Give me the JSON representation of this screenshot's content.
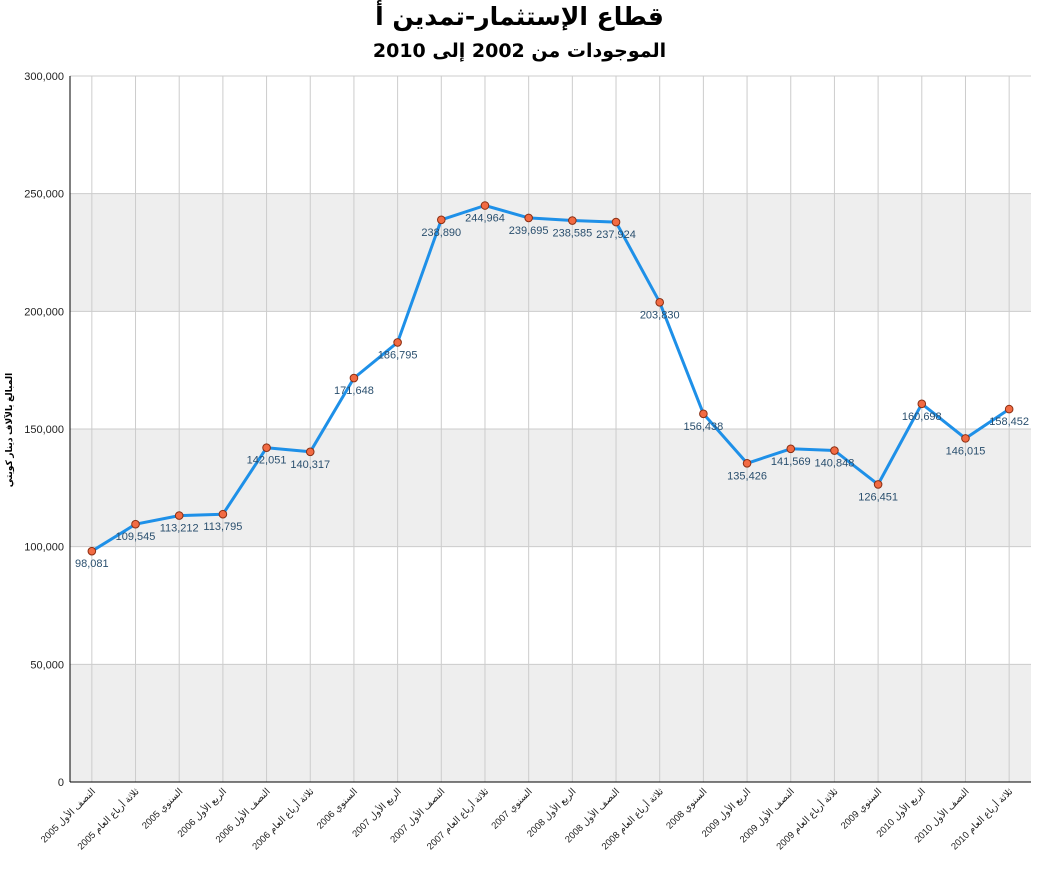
{
  "chart_data": {
    "type": "line",
    "title": "قطاع الإستثمار-تمدين أ",
    "subtitle": "الموجودات من 2002 إلى 2010",
    "ylabel": "المبالغ بالآلاف دينار كويتي",
    "xlabel": "",
    "ylim": [
      0,
      300000
    ],
    "yticks": [
      0,
      50000,
      100000,
      150000,
      200000,
      250000,
      300000
    ],
    "ytick_labels": [
      "0",
      "50,000",
      "100,000",
      "150,000",
      "200,000",
      "250,000",
      "300,000"
    ],
    "grid": true,
    "legend": "none",
    "categories": [
      "النصف الأول 2005",
      "ثلاثة أرباع العام 2005",
      "السنوي 2005",
      "الربع الأول 2006",
      "النصف الأول 2006",
      "ثلاثة أرباع العام 2006",
      "السنوي 2006",
      "الربع الأول 2007",
      "النصف الأول 2007",
      "ثلاثة أرباع العام 2007",
      "السنوي 2007",
      "الربع الأول 2008",
      "النصف الأول 2008",
      "ثلاثة أرباع العام 2008",
      "السنوي 2008",
      "الربع الأول 2009",
      "النصف الأول 2009",
      "ثلاثة أرباع العام 2009",
      "السنوي 2009",
      "الربع الأول 2010",
      "النصف الأول 2010",
      "ثلاثة أرباع العام 2010"
    ],
    "values": [
      98081,
      109545,
      113212,
      113795,
      142051,
      140317,
      171648,
      186795,
      238890,
      244964,
      239695,
      238585,
      237924,
      203830,
      156438,
      135426,
      141569,
      140848,
      126451,
      160698,
      146015,
      158452
    ],
    "value_labels": [
      "98,081",
      "109,545",
      "113,212",
      "113,795",
      "142,051",
      "140,317",
      "171,648",
      "186,795",
      "238,890",
      "244,964",
      "239,695",
      "238,585",
      "237,924",
      "203,830",
      "156,438",
      "135,426",
      "141,569",
      "140,848",
      "126,451",
      "160,698",
      "146,015",
      "158,452"
    ],
    "colors": {
      "line": "#1e90e8",
      "marker": "#f26b43",
      "marker_stroke": "#8a2e12",
      "band": "#eeeeee",
      "grid": "#cccccc",
      "axis": "#000000"
    }
  }
}
